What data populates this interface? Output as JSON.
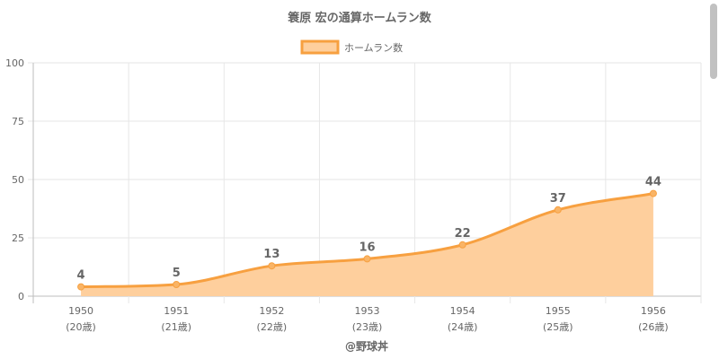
{
  "chart_data": {
    "type": "area",
    "title": "簑原 宏の通算ホームラン数",
    "legend": {
      "label": "ホームラン数",
      "position": "top-center"
    },
    "categories": [
      "1950",
      "1951",
      "1952",
      "1953",
      "1954",
      "1955",
      "1956"
    ],
    "sublabels": [
      "(20歳)",
      "(21歳)",
      "(22歳)",
      "(23歳)",
      "(24歳)",
      "(25歳)",
      "(26歳)"
    ],
    "series": [
      {
        "name": "ホームラン数",
        "values": [
          4,
          5,
          13,
          16,
          22,
          37,
          44
        ]
      }
    ],
    "ylim": [
      0,
      100
    ],
    "yticks": [
      0,
      25,
      50,
      75,
      100
    ],
    "grid": true,
    "footer": "@野球丼",
    "colors": {
      "line": "#f7a040",
      "fill": "#fecf9d",
      "point": "#f9b466",
      "grid": "#e6e6e6",
      "axis": "#bdbdbd",
      "text": "#666666"
    }
  }
}
